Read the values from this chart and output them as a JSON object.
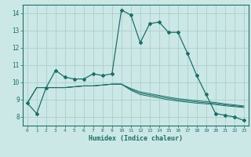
{
  "xlabel": "Humidex (Indice chaleur)",
  "bg_color": "#cce8e6",
  "grid_color": "#aacfcc",
  "line_color": "#1a7068",
  "xlim": [
    -0.5,
    23.5
  ],
  "ylim": [
    7.5,
    14.5
  ],
  "xticks": [
    0,
    1,
    2,
    3,
    4,
    5,
    6,
    7,
    8,
    9,
    10,
    11,
    12,
    13,
    14,
    15,
    16,
    17,
    18,
    19,
    20,
    21,
    22,
    23
  ],
  "yticks": [
    8,
    9,
    10,
    11,
    12,
    13,
    14
  ],
  "series_main": [
    8.8,
    8.2,
    9.7,
    10.7,
    10.3,
    10.2,
    10.2,
    10.5,
    10.4,
    10.5,
    14.2,
    13.9,
    12.3,
    13.4,
    13.5,
    12.9,
    12.9,
    11.7,
    10.4,
    9.3,
    8.2,
    8.1,
    8.0,
    7.8
  ],
  "series_lines": [
    [
      8.8,
      9.7,
      9.7,
      9.7,
      9.7,
      9.75,
      9.8,
      9.8,
      9.85,
      9.9,
      9.9,
      9.55,
      9.3,
      9.2,
      9.1,
      9.0,
      8.92,
      8.86,
      8.8,
      8.76,
      8.72,
      8.65,
      8.6,
      8.55
    ],
    [
      8.8,
      9.7,
      9.7,
      9.7,
      9.7,
      9.75,
      9.8,
      9.8,
      9.85,
      9.9,
      9.9,
      9.6,
      9.38,
      9.28,
      9.18,
      9.08,
      8.99,
      8.93,
      8.87,
      8.82,
      8.78,
      8.7,
      8.65,
      8.59
    ],
    [
      8.8,
      9.7,
      9.7,
      9.7,
      9.7,
      9.75,
      9.8,
      9.8,
      9.85,
      9.9,
      9.9,
      9.65,
      9.45,
      9.35,
      9.25,
      9.15,
      9.06,
      9.0,
      8.94,
      8.89,
      8.84,
      8.76,
      8.7,
      8.64
    ]
  ]
}
